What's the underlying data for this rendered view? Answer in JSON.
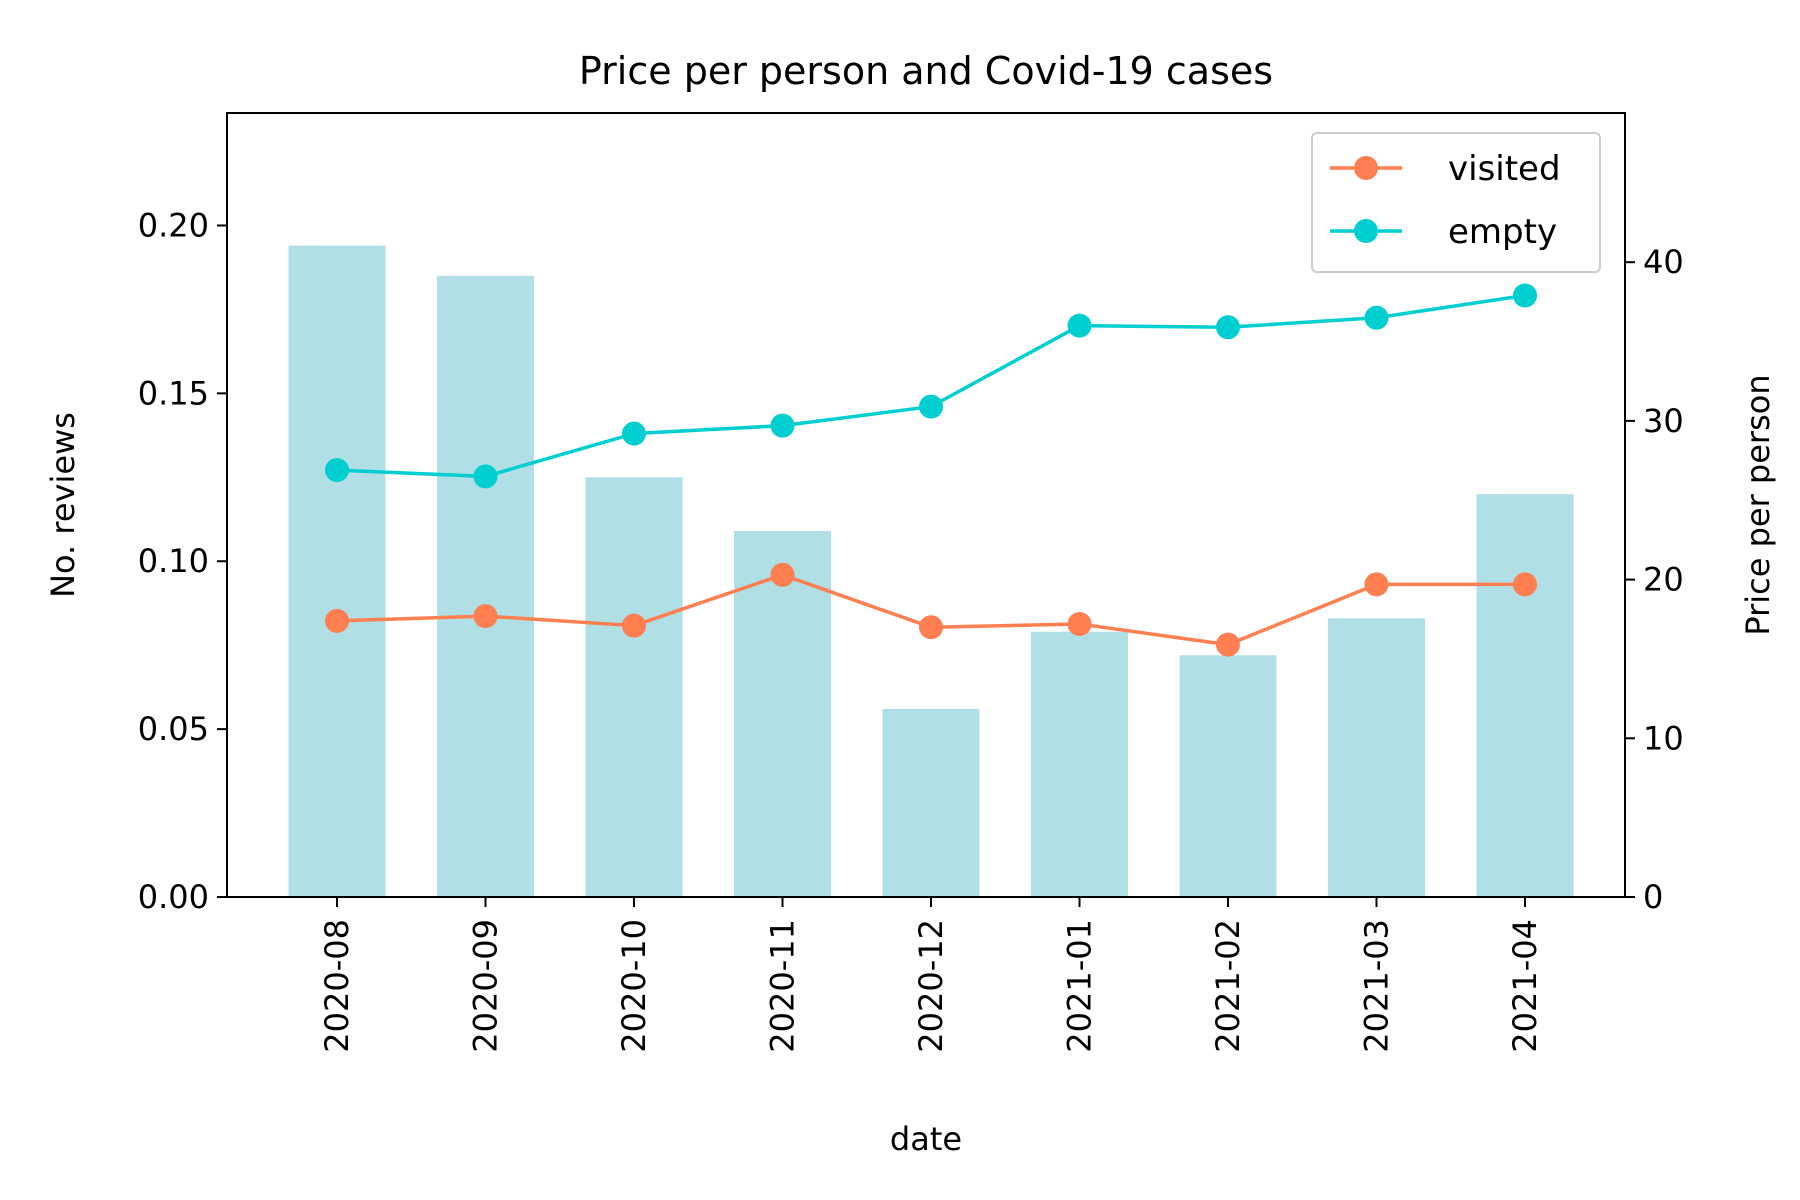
{
  "chart_data": {
    "type": "bar",
    "title": "Price per person and Covid-19 cases",
    "xlabel": "date",
    "ylabel": "No. reviews",
    "y2label": "Price per person",
    "categories": [
      "2020-08",
      "2020-09",
      "2020-10",
      "2020-11",
      "2020-12",
      "2021-01",
      "2021-02",
      "2021-03",
      "2021-04"
    ],
    "bars": {
      "values": [
        0.194,
        0.185,
        0.125,
        0.109,
        0.056,
        0.079,
        0.072,
        0.083,
        0.12
      ],
      "color": "#b0dfe5"
    },
    "ylim": [
      0,
      0.2335
    ],
    "yticks": [
      0.0,
      0.05,
      0.1,
      0.15,
      0.2
    ],
    "ytick_labels": [
      "0.00",
      "0.05",
      "0.10",
      "0.15",
      "0.20"
    ],
    "y2lim": [
      0,
      49.4
    ],
    "y2ticks": [
      0,
      10,
      20,
      30,
      40
    ],
    "y2tick_labels": [
      "0",
      "10",
      "20",
      "30",
      "40"
    ],
    "series": [
      {
        "name": "visited",
        "axis": "right",
        "color": "#ff7f50",
        "values": [
          17.4,
          17.7,
          17.1,
          20.3,
          17.0,
          17.2,
          15.9,
          19.7,
          19.7
        ]
      },
      {
        "name": "empty",
        "axis": "right",
        "color": "#00ced1",
        "values": [
          26.9,
          26.5,
          29.2,
          29.7,
          30.9,
          36.0,
          35.9,
          36.5,
          37.9
        ]
      }
    ],
    "legend": "top-right",
    "grid": false
  }
}
